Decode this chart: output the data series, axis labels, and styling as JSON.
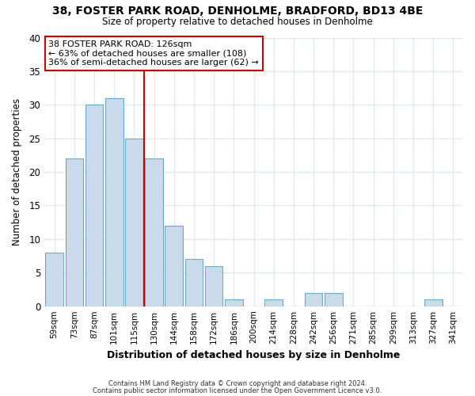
{
  "title1": "38, FOSTER PARK ROAD, DENHOLME, BRADFORD, BD13 4BE",
  "title2": "Size of property relative to detached houses in Denholme",
  "xlabel": "Distribution of detached houses by size in Denholme",
  "ylabel": "Number of detached properties",
  "bar_labels": [
    "59sqm",
    "73sqm",
    "87sqm",
    "101sqm",
    "115sqm",
    "130sqm",
    "144sqm",
    "158sqm",
    "172sqm",
    "186sqm",
    "200sqm",
    "214sqm",
    "228sqm",
    "242sqm",
    "256sqm",
    "271sqm",
    "285sqm",
    "299sqm",
    "313sqm",
    "327sqm",
    "341sqm"
  ],
  "bar_values": [
    8,
    22,
    30,
    31,
    25,
    22,
    12,
    7,
    6,
    1,
    0,
    1,
    0,
    2,
    2,
    0,
    0,
    0,
    0,
    1,
    0
  ],
  "bar_color": "#c9daea",
  "bar_edgecolor": "#6aaac8",
  "vline_color": "#cc0000",
  "vline_index": 4.5,
  "annotation_title": "38 FOSTER PARK ROAD: 126sqm",
  "annotation_line1": "← 63% of detached houses are smaller (108)",
  "annotation_line2": "36% of semi-detached houses are larger (62) →",
  "annotation_box_edgecolor": "#cc0000",
  "annotation_box_facecolor": "#ffffff",
  "ylim": [
    0,
    40
  ],
  "yticks": [
    0,
    5,
    10,
    15,
    20,
    25,
    30,
    35,
    40
  ],
  "footer1": "Contains HM Land Registry data © Crown copyright and database right 2024.",
  "footer2": "Contains public sector information licensed under the Open Government Licence v3.0.",
  "bg_color": "#ffffff",
  "plot_bg_color": "#ffffff",
  "grid_color": "#e0e8f0"
}
